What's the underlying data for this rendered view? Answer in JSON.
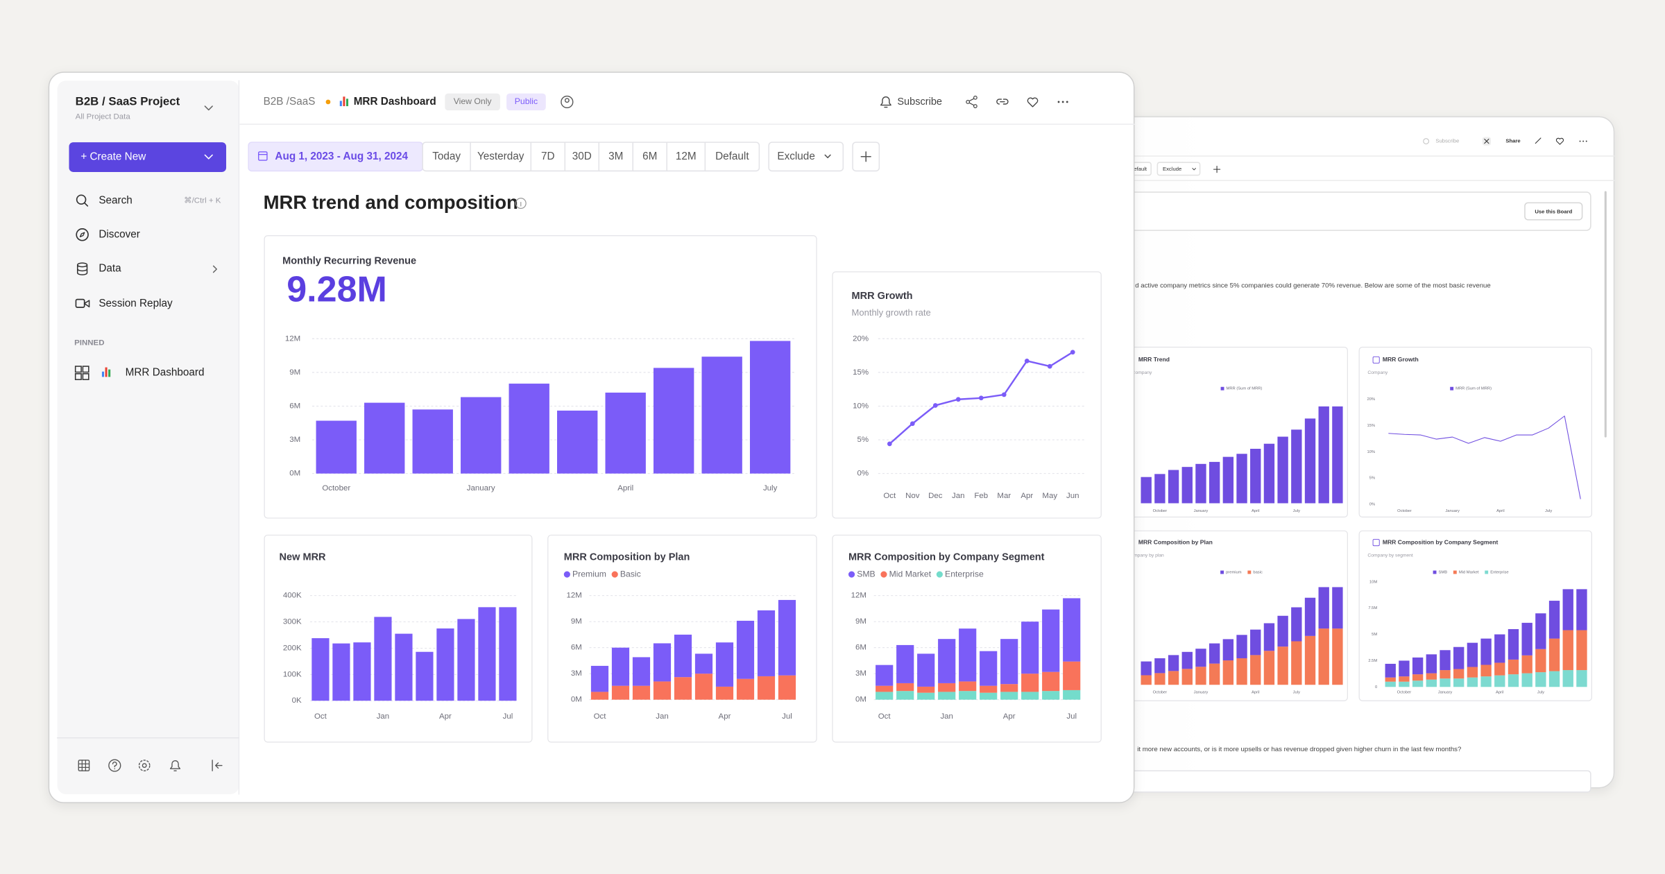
{
  "sidebar": {
    "project": "B2B / SaaS Project",
    "project_sub": "All Project Data",
    "create": "+ Create New",
    "nav": [
      {
        "label": "Search",
        "shortcut": "⌘/Ctrl + K"
      },
      {
        "label": "Discover"
      },
      {
        "label": "Data"
      },
      {
        "label": "Session Replay"
      }
    ],
    "pinned_heading": "PINNED",
    "pinned": [
      "MRR Dashboard"
    ]
  },
  "header": {
    "breadcrumb": "B2B /SaaS",
    "dashboard": "MRR Dashboard",
    "badges": [
      "View Only",
      "Public"
    ],
    "subscribe": "Subscribe"
  },
  "toolbar": {
    "date_range": "Aug 1, 2023 - Aug 31, 2024",
    "ranges": [
      "Today",
      "Yesterday",
      "7D",
      "30D",
      "3M",
      "6M",
      "12M",
      "Default"
    ],
    "exclude": "Exclude"
  },
  "page_title": "MRR trend and composition",
  "back_window": {
    "subscribe": "Subscribe",
    "share": "Share",
    "default": "Default",
    "exclude": "Exclude",
    "use_board": "Use this Board",
    "intro": "d active company metrics since 5% companies could generate 70% revenue. Below are some of the most basic revenue",
    "question": "it more new accounts, or is it more upsells or has revenue dropped given higher churn in the last few months?"
  },
  "chart_data": [
    {
      "type": "bar",
      "title": "Monthly Recurring Revenue",
      "kpi": "9.28M",
      "categories": [
        "October",
        null,
        null,
        "January",
        null,
        null,
        "April",
        null,
        null,
        "July"
      ],
      "values": [
        4.7,
        6.3,
        5.7,
        6.8,
        8.0,
        5.6,
        7.2,
        9.4,
        10.4,
        11.8
      ],
      "color": "#7b5cf8",
      "ylim": [
        0,
        12
      ],
      "yticks": [
        {
          "value": 0,
          "label": "0M"
        },
        {
          "value": 3,
          "label": "3M"
        },
        {
          "value": 6,
          "label": "6M"
        },
        {
          "value": 9,
          "label": "9M"
        },
        {
          "value": 12,
          "label": "12M"
        }
      ],
      "grid": true
    },
    {
      "type": "line",
      "title": "MRR Growth",
      "subtitle": "Monthly growth rate",
      "categories": [
        "Oct",
        "Nov",
        "Dec",
        "Jan",
        "Feb",
        "Mar",
        "Apr",
        "May",
        "Jun"
      ],
      "values": [
        4.4,
        7.4,
        10.1,
        11.0,
        11.2,
        11.7,
        16.7,
        15.9,
        18.0
      ],
      "color": "#7b5cf8",
      "markers": true,
      "ylim": [
        0,
        20
      ],
      "yticks": [
        {
          "value": 0,
          "label": "0%"
        },
        {
          "value": 5,
          "label": "5%"
        },
        {
          "value": 10,
          "label": "10%"
        },
        {
          "value": 15,
          "label": "15%"
        },
        {
          "value": 20,
          "label": "20%"
        }
      ],
      "grid": true
    },
    {
      "type": "bar",
      "title": "New MRR",
      "categories": [
        "Oct",
        null,
        null,
        "Jan",
        null,
        null,
        "Apr",
        null,
        null,
        "Jul"
      ],
      "values": [
        238,
        218,
        222,
        319,
        255,
        186,
        275,
        311,
        356,
        356
      ],
      "color": "#7b5cf8",
      "ylim": [
        0,
        400
      ],
      "yticks": [
        {
          "value": 0,
          "label": "0K"
        },
        {
          "value": 100,
          "label": "100K"
        },
        {
          "value": 200,
          "label": "200K"
        },
        {
          "value": 300,
          "label": "300K"
        },
        {
          "value": 400,
          "label": "400K"
        }
      ],
      "grid": true
    },
    {
      "type": "bar",
      "stacked": true,
      "title": "MRR Composition by Plan",
      "legend": "top-left",
      "categories": [
        "Oct",
        null,
        null,
        "Jan",
        null,
        null,
        "Apr",
        null,
        null,
        "Jul"
      ],
      "series": [
        {
          "name": "Premium",
          "color": "#7b5cf8",
          "values": [
            3.0,
            4.4,
            3.3,
            4.4,
            4.9,
            2.3,
            5.1,
            6.7,
            7.6,
            8.7
          ]
        },
        {
          "name": "Basic",
          "color": "#f9735b",
          "values": [
            0.9,
            1.6,
            1.6,
            2.1,
            2.6,
            3.0,
            1.5,
            2.4,
            2.7,
            2.8
          ]
        }
      ],
      "ylim": [
        0,
        12
      ],
      "yticks": [
        {
          "value": 0,
          "label": "0M"
        },
        {
          "value": 3,
          "label": "3M"
        },
        {
          "value": 6,
          "label": "6M"
        },
        {
          "value": 9,
          "label": "9M"
        },
        {
          "value": 12,
          "label": "12M"
        }
      ],
      "grid": true
    },
    {
      "type": "bar",
      "stacked": true,
      "title": "MRR Composition by Company Segment",
      "legend": "top-left",
      "categories": [
        "Oct",
        null,
        null,
        "Jan",
        null,
        null,
        "Apr",
        null,
        null,
        "Jul"
      ],
      "series": [
        {
          "name": "SMB",
          "color": "#7b5cf8",
          "values": [
            2.4,
            4.4,
            3.8,
            5.1,
            6.1,
            4.0,
            5.2,
            6.0,
            7.2,
            7.3
          ]
        },
        {
          "name": "Mid Market",
          "color": "#f9735b",
          "values": [
            0.7,
            0.9,
            0.7,
            1.0,
            1.1,
            0.8,
            0.9,
            2.1,
            2.2,
            3.3
          ]
        },
        {
          "name": "Enterprise",
          "color": "#74dccb",
          "values": [
            0.9,
            1.0,
            0.8,
            0.9,
            1.0,
            0.8,
            0.9,
            0.9,
            1.0,
            1.1
          ]
        }
      ],
      "ylim": [
        0,
        12
      ],
      "yticks": [
        {
          "value": 0,
          "label": "0M"
        },
        {
          "value": 3,
          "label": "3M"
        },
        {
          "value": 6,
          "label": "6M"
        },
        {
          "value": 9,
          "label": "9M"
        },
        {
          "value": 12,
          "label": "12M"
        }
      ],
      "grid": true
    },
    {
      "type": "bar",
      "title": "MRR Trend",
      "subtitle": "Company",
      "legend": "top",
      "categories": [
        null,
        "October",
        null,
        null,
        "January",
        null,
        null,
        null,
        "April",
        null,
        null,
        "July",
        null,
        null,
        null
      ],
      "series": [
        {
          "name": "MRR (Sum of MRR)",
          "color": "#6f4de0",
          "values": [
            2.6,
            2.9,
            3.3,
            3.6,
            3.9,
            4.1,
            4.6,
            4.9,
            5.4,
            5.9,
            6.6,
            7.3,
            8.4,
            9.6,
            9.6
          ]
        }
      ],
      "ylim": [
        0,
        12
      ],
      "grid": false
    },
    {
      "type": "line",
      "title": "MRR Growth",
      "subtitle": "Company",
      "legend": "top",
      "categories": [
        null,
        "October",
        null,
        null,
        "January",
        null,
        null,
        "April",
        null,
        null,
        "July",
        null,
        null
      ],
      "series": [
        {
          "name": "MRR (Sum of MRR)",
          "color": "#6f4de0",
          "values": [
            13.5,
            13.3,
            13.2,
            12.4,
            12.8,
            11.6,
            12.7,
            12.0,
            13.2,
            13.2,
            14.5,
            16.8,
            1.0
          ]
        }
      ],
      "ylim": [
        0,
        20
      ],
      "yticks": [
        {
          "value": 0,
          "label": "0%"
        },
        {
          "value": 5,
          "label": "5%"
        },
        {
          "value": 10,
          "label": "10%"
        },
        {
          "value": 15,
          "label": "15%"
        },
        {
          "value": 20,
          "label": "20%"
        }
      ],
      "grid": false
    },
    {
      "type": "bar",
      "stacked": true,
      "title": "MRR Composition by Plan",
      "subtitle": "Company by plan",
      "legend": "top",
      "categories": [
        null,
        "October",
        null,
        null,
        "January",
        null,
        null,
        null,
        "April",
        null,
        null,
        "July",
        null,
        null,
        null
      ],
      "series": [
        {
          "name": "premium",
          "color": "#6f4de0",
          "values": [
            1.3,
            1.4,
            1.5,
            1.6,
            1.7,
            1.9,
            2.0,
            2.2,
            2.4,
            2.6,
            2.9,
            3.2,
            3.6,
            3.9,
            3.9
          ]
        },
        {
          "name": "basic",
          "color": "#f47a56",
          "values": [
            0.9,
            1.1,
            1.3,
            1.5,
            1.7,
            2.0,
            2.3,
            2.5,
            2.8,
            3.2,
            3.6,
            4.1,
            4.6,
            5.3,
            5.3
          ]
        }
      ],
      "ylim": [
        0,
        10
      ],
      "grid": false
    },
    {
      "type": "bar",
      "stacked": true,
      "title": "MRR Composition by Company Segment",
      "subtitle": "Company by segment",
      "legend": "top",
      "categories": [
        null,
        "October",
        null,
        null,
        "January",
        null,
        null,
        null,
        "April",
        null,
        null,
        "July",
        null,
        null,
        null
      ],
      "series": [
        {
          "name": "SMB",
          "color": "#6f4de0",
          "values": [
            1.3,
            1.5,
            1.6,
            1.8,
            1.9,
            2.1,
            2.3,
            2.5,
            2.7,
            2.9,
            3.1,
            3.4,
            3.6,
            3.9,
            3.9
          ]
        },
        {
          "name": "Mid Market",
          "color": "#f47a56",
          "values": [
            0.4,
            0.5,
            0.6,
            0.6,
            0.8,
            0.9,
            1.0,
            1.1,
            1.2,
            1.4,
            1.7,
            2.2,
            3.1,
            3.8,
            3.8
          ]
        },
        {
          "name": "Enterprise",
          "color": "#7ddad0",
          "values": [
            0.5,
            0.5,
            0.6,
            0.7,
            0.8,
            0.8,
            0.9,
            1.0,
            1.1,
            1.2,
            1.3,
            1.4,
            1.5,
            1.6,
            1.6
          ]
        }
      ],
      "ylim": [
        0,
        10
      ],
      "yticks": [
        0,
        {
          "value": 2.5,
          "label": "2.5M"
        },
        {
          "value": 5,
          "label": "5M"
        },
        {
          "value": 7.5,
          "label": "7.5M"
        },
        {
          "value": 10,
          "label": "10M"
        }
      ],
      "grid": false
    }
  ]
}
